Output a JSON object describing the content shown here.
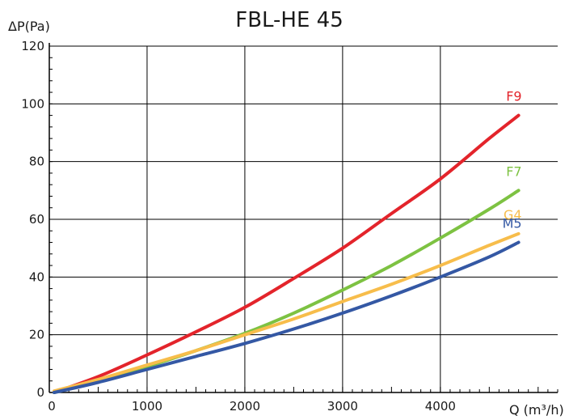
{
  "chart_data": {
    "type": "line",
    "title": "FBL-HE 45",
    "ylabel": "ΔP(Pa)",
    "xlabel": "Q (m³/h)",
    "xlim": [
      0,
      5200
    ],
    "ylim": [
      0,
      120
    ],
    "xticks": [
      "0",
      "1000",
      "2000",
      "3000",
      "4000"
    ],
    "yticks": [
      "0",
      "20",
      "40",
      "60",
      "80",
      "100",
      "120"
    ],
    "grid": true,
    "series": [
      {
        "name": "F9",
        "color": "#e3242b",
        "x": [
          50,
          500,
          1000,
          1500,
          2000,
          2500,
          3000,
          3500,
          4000,
          4500,
          4800
        ],
        "y": [
          0,
          5.5,
          13,
          21,
          29.5,
          39.5,
          50,
          62,
          74,
          88,
          96
        ]
      },
      {
        "name": "F7",
        "color": "#7dc242",
        "x": [
          50,
          500,
          1000,
          1500,
          2000,
          2500,
          3000,
          3500,
          4000,
          4500,
          4800
        ],
        "y": [
          0,
          4,
          9,
          14.5,
          20.5,
          27.5,
          35.5,
          44,
          53.5,
          63.5,
          70
        ]
      },
      {
        "name": "G4",
        "color": "#f7bd4b",
        "x": [
          50,
          500,
          1000,
          1500,
          2000,
          2500,
          3000,
          3500,
          4000,
          4500,
          4800
        ],
        "y": [
          0.5,
          4.5,
          9.5,
          14.5,
          20,
          25.5,
          31.5,
          37.5,
          44,
          51,
          55
        ]
      },
      {
        "name": "M5",
        "color": "#3458a4",
        "x": [
          50,
          500,
          1000,
          1500,
          2000,
          2500,
          3000,
          3500,
          4000,
          4500,
          4800
        ],
        "y": [
          0,
          3.5,
          8,
          12.5,
          17,
          22,
          27.5,
          33.5,
          40,
          47,
          52
        ]
      }
    ]
  }
}
